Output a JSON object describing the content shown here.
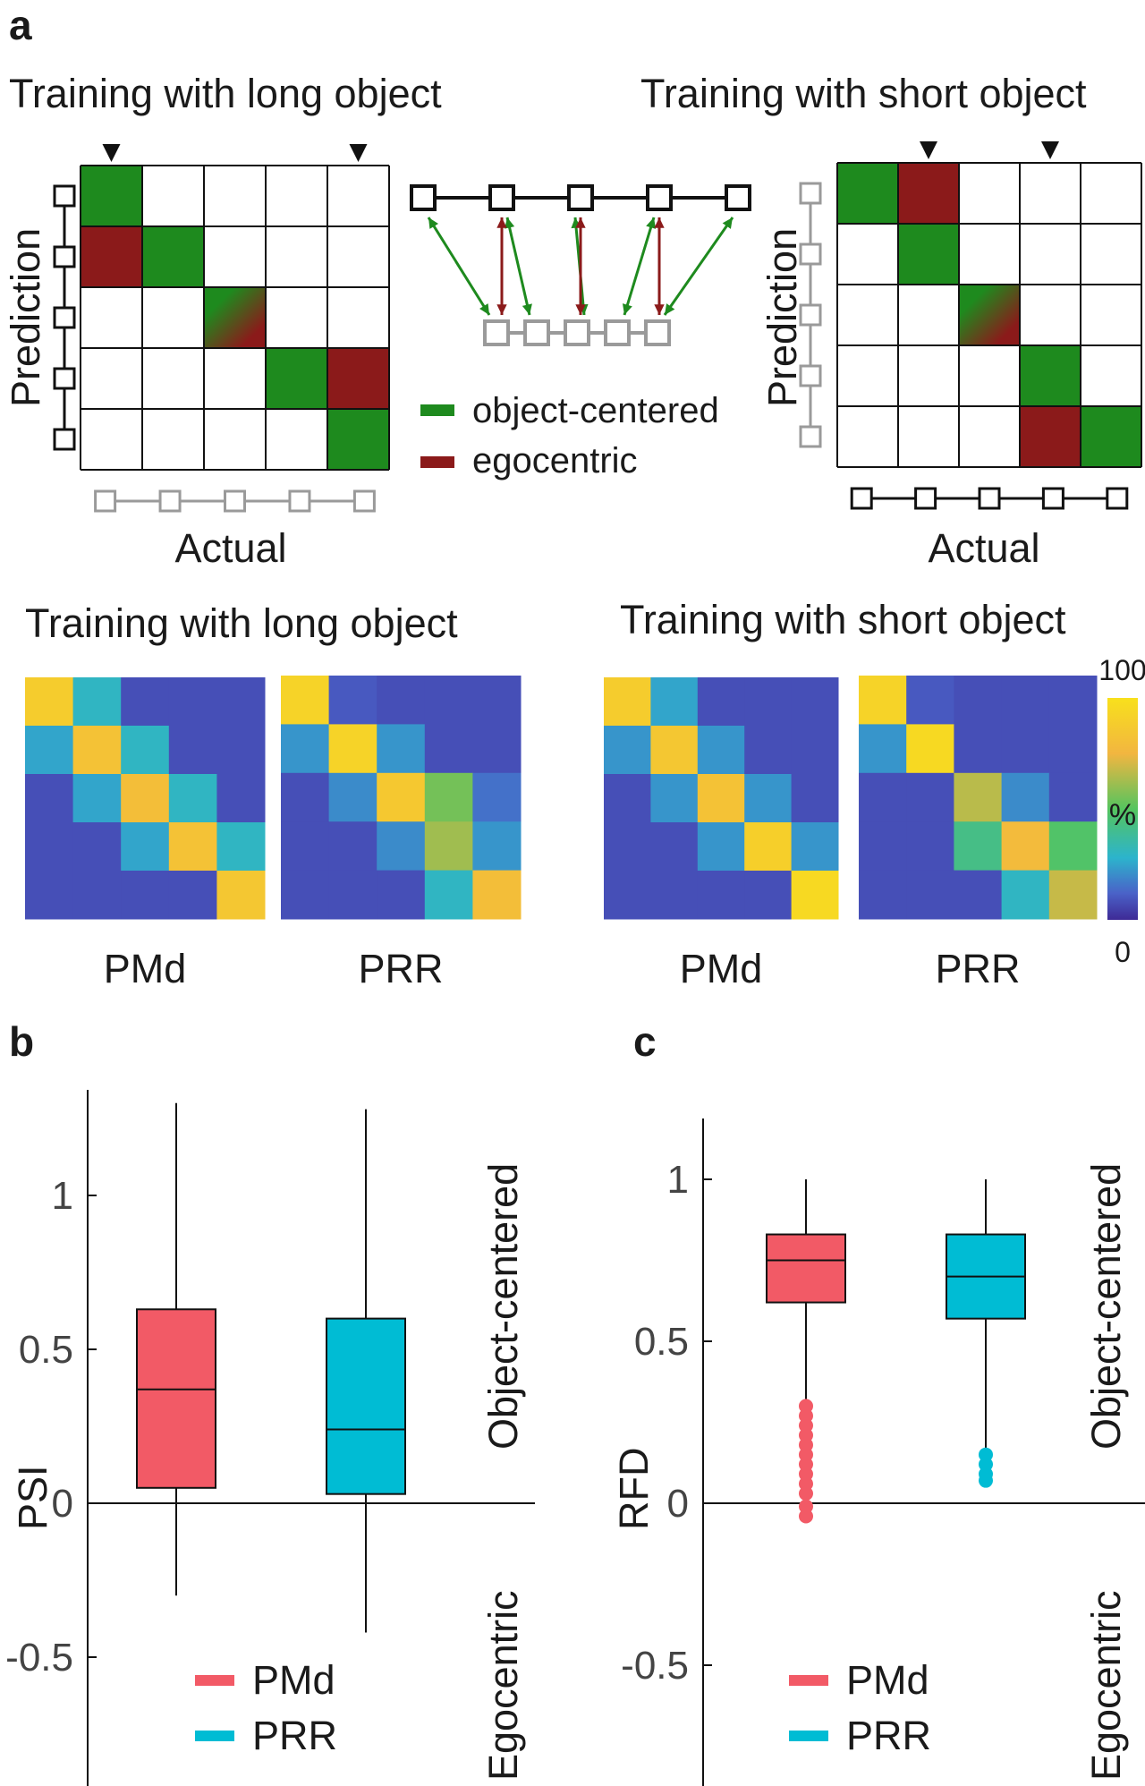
{
  "panel_labels": {
    "a": "a",
    "b": "b",
    "c": "c"
  },
  "schematic": {
    "left_title": "Training with long object",
    "right_title": "Training with short object",
    "ylabel": "Prediction",
    "xlabel": "Actual",
    "legend_object_centered": "object-centered",
    "legend_egocentric": "egocentric",
    "colors": {
      "object_centered": "#1e8a1e",
      "egocentric": "#8b1a1a",
      "gray": "#9a9a9a"
    },
    "left_cells": [
      {
        "r": 0,
        "c": 0,
        "k": "g"
      },
      {
        "r": 1,
        "c": 0,
        "k": "e"
      },
      {
        "r": 1,
        "c": 1,
        "k": "g"
      },
      {
        "r": 2,
        "c": 2,
        "k": "m"
      },
      {
        "r": 3,
        "c": 3,
        "k": "g"
      },
      {
        "r": 3,
        "c": 4,
        "k": "e"
      },
      {
        "r": 4,
        "c": 4,
        "k": "g"
      }
    ],
    "right_cells": [
      {
        "r": 0,
        "c": 0,
        "k": "g"
      },
      {
        "r": 0,
        "c": 1,
        "k": "e"
      },
      {
        "r": 1,
        "c": 1,
        "k": "g"
      },
      {
        "r": 2,
        "c": 2,
        "k": "m"
      },
      {
        "r": 3,
        "c": 3,
        "k": "g"
      },
      {
        "r": 4,
        "c": 3,
        "k": "e"
      },
      {
        "r": 4,
        "c": 4,
        "k": "g"
      }
    ],
    "left_arrow_cols": [
      0,
      4
    ],
    "right_arrow_cols": [
      1,
      3
    ]
  },
  "heatmaps": {
    "left_title": "Training with long object",
    "right_title": "Training with short object",
    "colorbar_max": "100",
    "colorbar_min": "0",
    "colorbar_unit": "%",
    "maps": [
      {
        "label": "PMd",
        "values": [
          [
            88,
            30,
            8,
            8,
            8
          ],
          [
            25,
            82,
            30,
            8,
            8
          ],
          [
            8,
            25,
            80,
            30,
            8
          ],
          [
            8,
            8,
            25,
            82,
            30
          ],
          [
            8,
            8,
            8,
            8,
            85
          ]
        ]
      },
      {
        "label": "PRR",
        "values": [
          [
            92,
            10,
            8,
            8,
            8
          ],
          [
            22,
            92,
            22,
            8,
            8
          ],
          [
            8,
            20,
            86,
            55,
            15
          ],
          [
            8,
            8,
            20,
            62,
            22
          ],
          [
            8,
            8,
            8,
            30,
            80
          ]
        ]
      },
      {
        "label": "PMd",
        "values": [
          [
            88,
            25,
            8,
            8,
            8
          ],
          [
            22,
            85,
            22,
            8,
            8
          ],
          [
            8,
            22,
            82,
            22,
            8
          ],
          [
            8,
            8,
            22,
            90,
            22
          ],
          [
            8,
            8,
            8,
            8,
            96
          ]
        ]
      },
      {
        "label": "PRR",
        "values": [
          [
            92,
            10,
            8,
            8,
            8
          ],
          [
            22,
            96,
            8,
            8,
            8
          ],
          [
            8,
            8,
            66,
            20,
            8
          ],
          [
            8,
            8,
            42,
            78,
            48
          ],
          [
            8,
            8,
            8,
            30,
            68
          ]
        ]
      }
    ]
  },
  "chart_data": [
    {
      "type": "box",
      "ylabel": "PSI",
      "ylim": [
        -0.85,
        1.3
      ],
      "yticks": [
        "1",
        "0.5",
        "0",
        "-0.5"
      ],
      "side_label_top": "Object-centered",
      "side_label_bottom": "Egocentric",
      "series": [
        {
          "name": "PMd",
          "color": "#f25a66",
          "whisker_low": -0.3,
          "q1": 0.05,
          "median": 0.37,
          "q3": 0.63,
          "whisker_high": 1.3,
          "outliers": []
        },
        {
          "name": "PRR",
          "color": "#00bcd4",
          "whisker_low": -0.42,
          "q1": 0.03,
          "median": 0.24,
          "q3": 0.6,
          "whisker_high": 1.28,
          "outliers": []
        }
      ]
    },
    {
      "type": "box",
      "ylabel": "RFD",
      "ylim": [
        -0.85,
        1.2
      ],
      "yticks": [
        "1",
        "0.5",
        "0",
        "-0.5"
      ],
      "side_label_top": "Object-centered",
      "side_label_bottom": "Egocentric",
      "series": [
        {
          "name": "PMd",
          "color": "#f25a66",
          "whisker_low": 0.32,
          "q1": 0.62,
          "median": 0.75,
          "q3": 0.83,
          "whisker_high": 1.0,
          "outliers": [
            0.3,
            0.27,
            0.24,
            0.21,
            0.18,
            0.15,
            0.12,
            0.09,
            0.06,
            0.03,
            -0.01,
            -0.04
          ]
        },
        {
          "name": "PRR",
          "color": "#00bcd4",
          "whisker_low": 0.17,
          "q1": 0.57,
          "median": 0.7,
          "q3": 0.83,
          "whisker_high": 1.0,
          "outliers": [
            0.15,
            0.12,
            0.09,
            0.07
          ]
        }
      ]
    }
  ]
}
